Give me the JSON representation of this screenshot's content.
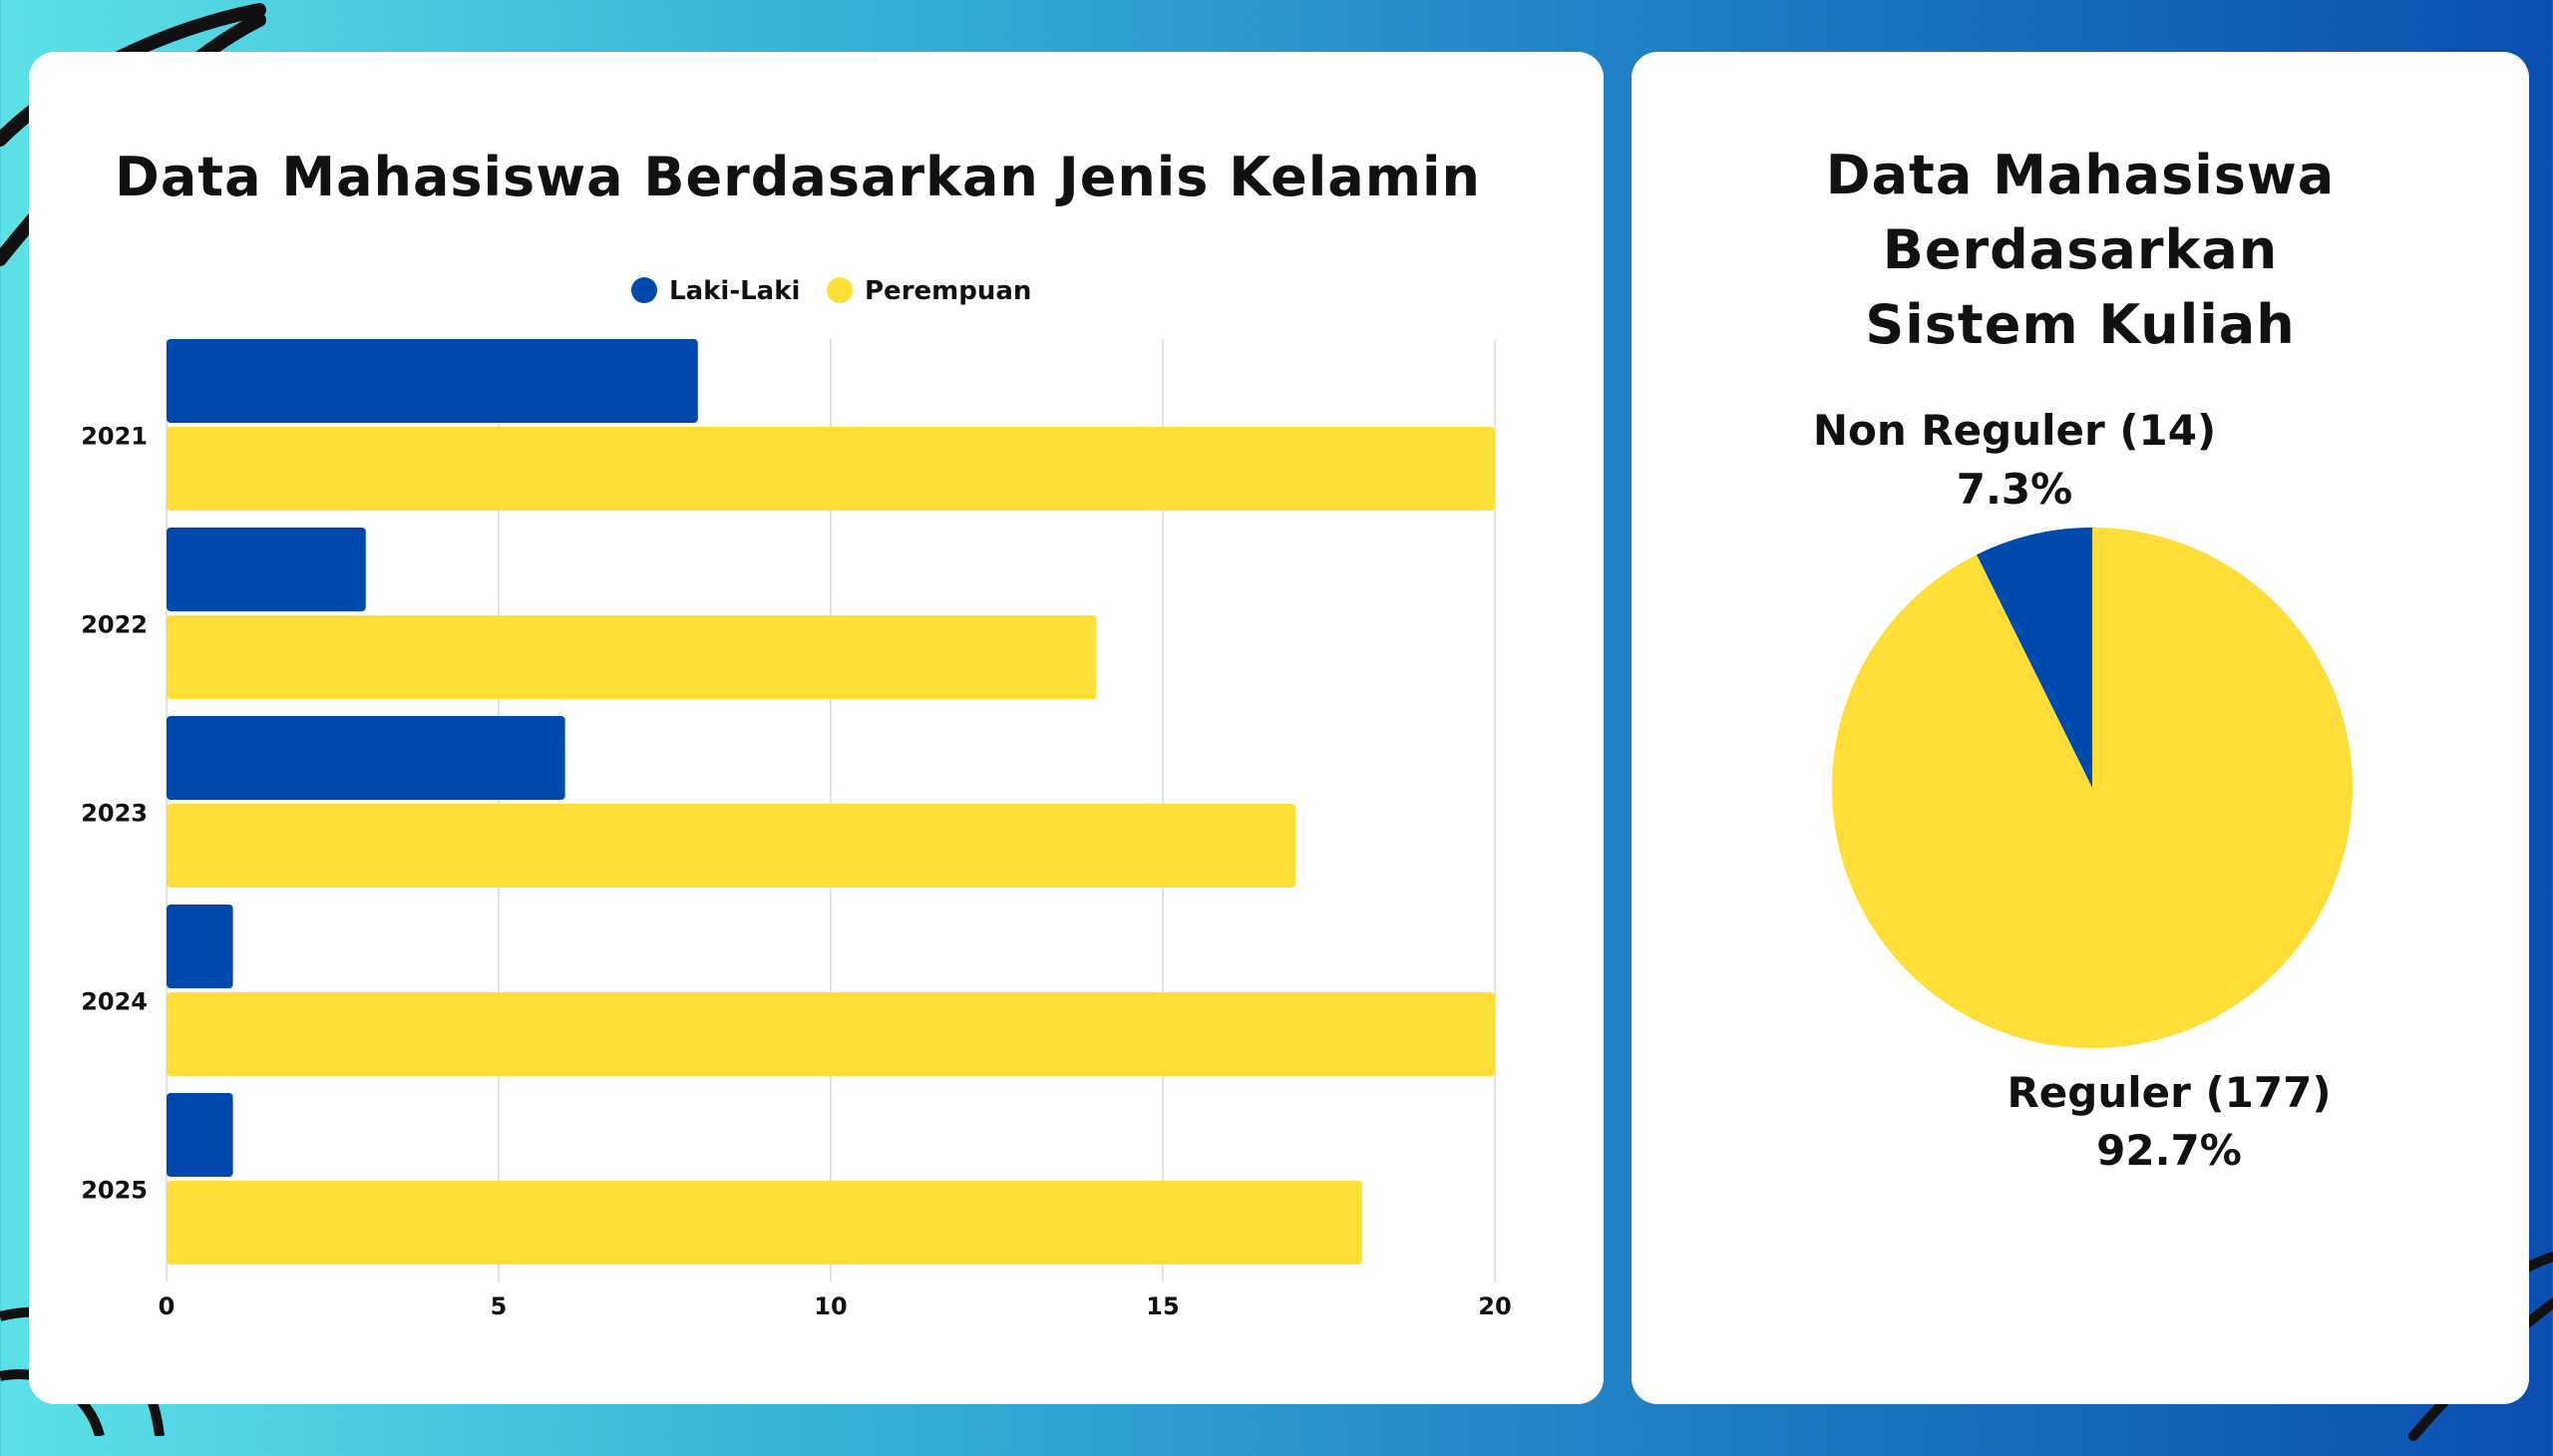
{
  "colors": {
    "laki": "#004aad",
    "perempuan": "#ffde38"
  },
  "chart_data": [
    {
      "type": "bar",
      "orientation": "horizontal",
      "title": "Data Mahasiswa Berdasarkan Jenis Kelamin",
      "categories": [
        "2021",
        "2022",
        "2023",
        "2024",
        "2025"
      ],
      "series": [
        {
          "name": "Laki-Laki",
          "values": [
            8,
            3,
            6,
            1,
            1
          ]
        },
        {
          "name": "Perempuan",
          "values": [
            20,
            14,
            17,
            20,
            18
          ]
        }
      ],
      "xlim": [
        0,
        20
      ],
      "xticks": [
        "0",
        "5",
        "10",
        "15",
        "20"
      ],
      "grid": true,
      "legend": "top-center"
    },
    {
      "type": "pie",
      "title": "Data Mahasiswa Berdasarkan Sistem Kuliah",
      "title_lines": [
        "Data Mahasiswa Berdasarkan",
        "Sistem Kuliah"
      ],
      "slices": [
        {
          "name": "Non Reguler",
          "value": 14,
          "label": "Non Reguler (14)",
          "percent_label": "7.3%"
        },
        {
          "name": "Reguler",
          "value": 177,
          "label": "Reguler (177)",
          "percent_label": "92.7%"
        }
      ]
    }
  ]
}
